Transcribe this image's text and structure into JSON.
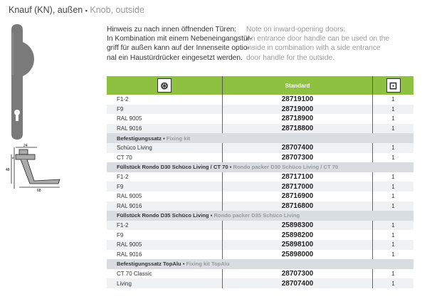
{
  "title": {
    "de": "Knauf (KN), außen",
    "sep": "▪",
    "en": "Knob, outside"
  },
  "note": {
    "de": [
      "Hinweis zu nach innen öffnenden Türen:",
      "In Kombination mit einem Nebeneingangstür-",
      "griff für außen kann auf der Innenseite optio-",
      "nal ein Haustürdrücker eingesetzt werden."
    ],
    "en": [
      "Note on inward-opening doors:",
      "An entrance door handle can be used on the",
      "inside in combination with a side entrance",
      "door handle for the outside."
    ]
  },
  "drawing": {
    "dims": [
      "24",
      "8",
      "48",
      "68"
    ]
  },
  "table": {
    "header": {
      "col1_icon": "color-wheel-icon",
      "col2": "Standard",
      "col3_icon": "package-box-icon",
      "accent": "#8dc13f"
    },
    "rows": [
      {
        "label": "F1-2",
        "num": "28719100",
        "qty": "1"
      },
      {
        "label": "F9",
        "num": "28719000",
        "qty": "1"
      },
      {
        "label": "RAL 9005",
        "num": "28718900",
        "qty": "1"
      },
      {
        "label": "RAL 9016",
        "num": "28718800",
        "qty": "1"
      },
      {
        "group": true,
        "de": "Befestigungssatz",
        "en": "Fixing kit"
      },
      {
        "label": "Schüco Living",
        "num": "28707400",
        "qty": "1"
      },
      {
        "label": "CT 70",
        "num": "28707300",
        "qty": "1"
      },
      {
        "group": true,
        "de": "Füllstück Rondo  D30 Schüco Living / CT 70",
        "en": "Rondo packer D30 Schüco Living / CT 70"
      },
      {
        "label": "F1-2",
        "num": "28717100",
        "qty": "1"
      },
      {
        "label": "F9",
        "num": "28717000",
        "qty": "1"
      },
      {
        "label": "RAL 9005",
        "num": "28716900",
        "qty": "1"
      },
      {
        "label": "RAL 9016",
        "num": "28716800",
        "qty": "1"
      },
      {
        "group": true,
        "de": "Füllstück Rondo  D35 Schüco Living",
        "en": "Rondo packer D35 Schüco Living"
      },
      {
        "label": "F1-2",
        "num": "25898300",
        "qty": "1"
      },
      {
        "label": "F9",
        "num": "25898200",
        "qty": "1"
      },
      {
        "label": "RAL 9005",
        "num": "25898100",
        "qty": "1"
      },
      {
        "label": "RAL 9016",
        "num": "25898000",
        "qty": "1"
      },
      {
        "group": true,
        "de": "Befestigungssatz TopAlu",
        "en": "Fixing kit TopAlu"
      },
      {
        "label": "CT 70 Classic",
        "num": "28707300",
        "qty": "1"
      },
      {
        "label": "Living",
        "num": "28707400",
        "qty": "1"
      }
    ]
  }
}
